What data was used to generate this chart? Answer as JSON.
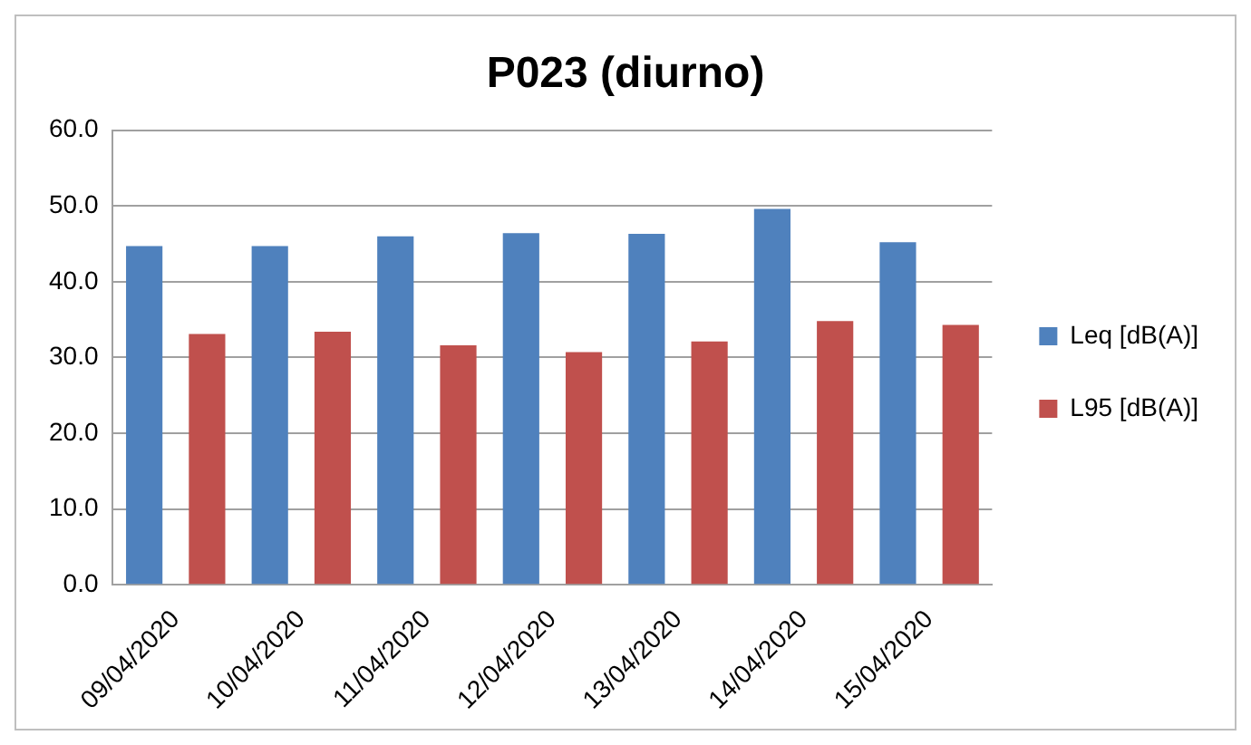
{
  "chart_data": {
    "type": "bar",
    "title": "P023 (diurno)",
    "categories": [
      "09/04/2020",
      "10/04/2020",
      "11/04/2020",
      "12/04/2020",
      "13/04/2020",
      "14/04/2020",
      "15/04/2020"
    ],
    "series": [
      {
        "name": "Leq [dB(A)]",
        "color": "#4f81bd",
        "values": [
          44.7,
          44.7,
          46.0,
          46.4,
          46.3,
          49.6,
          45.2
        ]
      },
      {
        "name": "L95 [dB(A)]",
        "color": "#c0504d",
        "values": [
          33.1,
          33.4,
          31.6,
          30.7,
          32.1,
          34.8,
          34.3
        ]
      }
    ],
    "ylim": [
      0,
      60
    ],
    "yticks": [
      {
        "value": 0,
        "label": "0.0"
      },
      {
        "value": 10,
        "label": "10.0"
      },
      {
        "value": 20,
        "label": "20.0"
      },
      {
        "value": 30,
        "label": "30.0"
      },
      {
        "value": 40,
        "label": "40.0"
      },
      {
        "value": 50,
        "label": "50.0"
      },
      {
        "value": 60,
        "label": "60.0"
      }
    ],
    "grid": "y",
    "legend": "right"
  }
}
